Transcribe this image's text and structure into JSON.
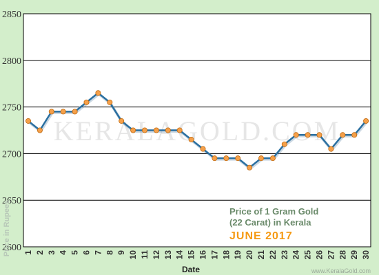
{
  "chart_data": {
    "type": "line",
    "title_lines": [
      "Price of 1 Gram Gold",
      "(22 Carat) in Kerala"
    ],
    "subtitle": "JUNE 2017",
    "xlabel": "Date",
    "ylabel": "Price in Rupees",
    "watermark": "KERALAGOLD.COM",
    "credit": "www.KeralaGold.com",
    "x": [
      1,
      2,
      3,
      4,
      5,
      6,
      7,
      8,
      9,
      10,
      11,
      12,
      13,
      14,
      15,
      16,
      17,
      18,
      19,
      20,
      21,
      22,
      23,
      24,
      25,
      26,
      27,
      28,
      29,
      30
    ],
    "series": [
      {
        "values": [
          2735,
          2725,
          2745,
          2745,
          2745,
          2755,
          2765,
          2755,
          2735,
          2725,
          2725,
          2725,
          2725,
          2725,
          2715,
          2705,
          2695,
          2695,
          2695,
          2685,
          2695,
          2695,
          2710,
          2720,
          2720,
          2720,
          2705,
          2720,
          2720,
          2735
        ]
      }
    ],
    "ylim": [
      2600,
      2850
    ],
    "yticks": [
      2600,
      2650,
      2700,
      2750,
      2800,
      2850
    ],
    "xlim": [
      1,
      30
    ],
    "grid": true,
    "colors": {
      "background": "#d3eecb",
      "plot_area": "#ffffff",
      "line": "#2a6fa0",
      "marker_fill": "#f5a04a",
      "marker_stroke": "#c06a10",
      "grid": "#000000",
      "subtitle": "#f59a14"
    }
  }
}
